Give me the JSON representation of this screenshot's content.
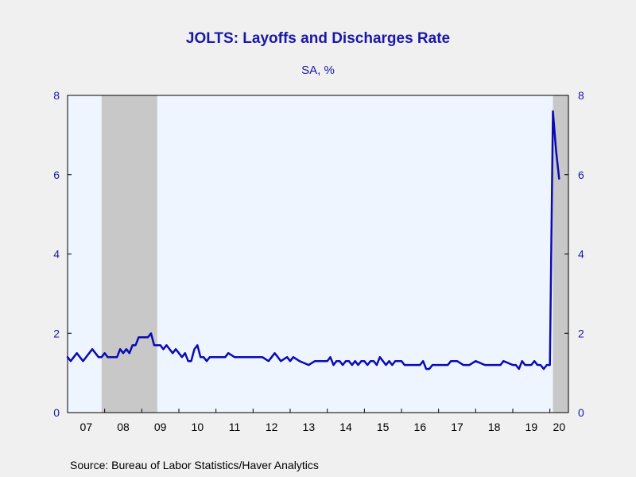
{
  "chart_data": {
    "type": "line",
    "title": "JOLTS: Layoffs and Discharges Rate",
    "subtitle": "SA, %",
    "source": "Source:  Bureau of Labor Statistics/Haver Analytics",
    "ylim": [
      0,
      8
    ],
    "yticks": [
      "0",
      "2",
      "4",
      "6",
      "8"
    ],
    "xlim": [
      2007.0,
      2020.5
    ],
    "xtick_labels": [
      "07",
      "08",
      "09",
      "10",
      "11",
      "12",
      "13",
      "14",
      "15",
      "16",
      "17",
      "18",
      "19",
      "20"
    ],
    "grid": false,
    "recessions": [
      {
        "start": 2007.917,
        "end": 2009.417
      },
      {
        "start": 2020.083,
        "end": 2020.5
      }
    ],
    "series": [
      {
        "color": "#0a0ab4",
        "x": [
          2007.0,
          2007.083,
          2007.167,
          2007.25,
          2007.333,
          2007.417,
          2007.5,
          2007.583,
          2007.667,
          2007.75,
          2007.833,
          2007.917,
          2008.0,
          2008.083,
          2008.167,
          2008.25,
          2008.333,
          2008.417,
          2008.5,
          2008.583,
          2008.667,
          2008.75,
          2008.833,
          2008.917,
          2009.0,
          2009.083,
          2009.167,
          2009.25,
          2009.333,
          2009.417,
          2009.5,
          2009.583,
          2009.667,
          2009.75,
          2009.833,
          2009.917,
          2010.0,
          2010.083,
          2010.167,
          2010.25,
          2010.333,
          2010.417,
          2010.5,
          2010.583,
          2010.667,
          2010.75,
          2010.833,
          2010.917,
          2011.0,
          2011.25,
          2011.333,
          2011.5,
          2011.75,
          2012.0,
          2012.25,
          2012.417,
          2012.5,
          2012.583,
          2012.667,
          2012.75,
          2012.917,
          2013.0,
          2013.083,
          2013.25,
          2013.5,
          2013.667,
          2013.75,
          2013.833,
          2014.0,
          2014.083,
          2014.167,
          2014.25,
          2014.333,
          2014.417,
          2014.5,
          2014.583,
          2014.667,
          2014.75,
          2014.833,
          2014.917,
          2015.0,
          2015.083,
          2015.167,
          2015.25,
          2015.333,
          2015.417,
          2015.5,
          2015.583,
          2015.667,
          2015.75,
          2015.833,
          2016.0,
          2016.083,
          2016.25,
          2016.5,
          2016.583,
          2016.667,
          2016.75,
          2016.833,
          2017.0,
          2017.083,
          2017.25,
          2017.333,
          2017.5,
          2017.667,
          2017.75,
          2017.833,
          2018.0,
          2018.25,
          2018.5,
          2018.583,
          2018.667,
          2018.75,
          2019.0,
          2019.083,
          2019.167,
          2019.25,
          2019.333,
          2019.5,
          2019.583,
          2019.667,
          2019.75,
          2019.833,
          2019.917,
          2020.0,
          2020.083,
          2020.167,
          2020.25
        ],
        "y": [
          1.4,
          1.3,
          1.4,
          1.5,
          1.4,
          1.3,
          1.4,
          1.5,
          1.6,
          1.5,
          1.4,
          1.4,
          1.5,
          1.4,
          1.4,
          1.4,
          1.4,
          1.6,
          1.5,
          1.6,
          1.5,
          1.7,
          1.7,
          1.9,
          1.9,
          1.9,
          1.9,
          2.0,
          1.7,
          1.7,
          1.7,
          1.6,
          1.7,
          1.6,
          1.5,
          1.6,
          1.5,
          1.4,
          1.5,
          1.3,
          1.3,
          1.6,
          1.7,
          1.4,
          1.4,
          1.3,
          1.4,
          1.4,
          1.4,
          1.4,
          1.5,
          1.4,
          1.4,
          1.4,
          1.4,
          1.3,
          1.4,
          1.5,
          1.4,
          1.3,
          1.4,
          1.3,
          1.4,
          1.3,
          1.2,
          1.3,
          1.3,
          1.3,
          1.3,
          1.4,
          1.2,
          1.3,
          1.3,
          1.2,
          1.3,
          1.3,
          1.2,
          1.3,
          1.2,
          1.3,
          1.3,
          1.2,
          1.3,
          1.3,
          1.2,
          1.4,
          1.3,
          1.2,
          1.3,
          1.2,
          1.3,
          1.3,
          1.2,
          1.2,
          1.2,
          1.3,
          1.1,
          1.1,
          1.2,
          1.2,
          1.2,
          1.2,
          1.3,
          1.3,
          1.2,
          1.2,
          1.2,
          1.3,
          1.2,
          1.2,
          1.2,
          1.2,
          1.3,
          1.2,
          1.2,
          1.1,
          1.3,
          1.2,
          1.2,
          1.3,
          1.2,
          1.2,
          1.1,
          1.2,
          1.2,
          7.6,
          6.6,
          5.9
        ]
      }
    ]
  }
}
